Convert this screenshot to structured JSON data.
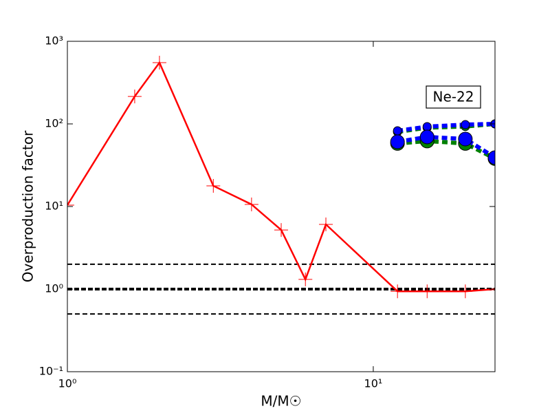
{
  "chart_data": {
    "type": "line",
    "xlabel": "M/M☉",
    "ylabel": "Overproduction factor",
    "annotation": "Ne-22",
    "xscale": "log",
    "yscale": "log",
    "xlim": [
      1,
      25
    ],
    "ylim": [
      0.1,
      1000
    ],
    "xticks": [
      {
        "value": 1,
        "label": "10⁰"
      },
      {
        "value": 10,
        "label": "10¹"
      }
    ],
    "yticks": [
      {
        "value": 0.1,
        "label": "10⁻¹"
      },
      {
        "value": 1,
        "label": "10⁰"
      },
      {
        "value": 10,
        "label": "10¹"
      },
      {
        "value": 100,
        "label": "10²"
      },
      {
        "value": 1000,
        "label": "10³"
      }
    ],
    "hlines": [
      {
        "value": 2,
        "color": "#000000",
        "style": "dashed"
      },
      {
        "value": 1,
        "color": "#000000",
        "style": "thick-dashed"
      },
      {
        "value": 0.5,
        "color": "#000000",
        "style": "dashed"
      }
    ],
    "series": [
      {
        "color": "#ff0000",
        "linestyle": "solid",
        "marker": "plus",
        "x": [
          1,
          1.66,
          2,
          3,
          4,
          5,
          6,
          7,
          12,
          15,
          20,
          25
        ],
        "values": [
          10.4,
          215,
          552,
          17.8,
          10.6,
          5.2,
          1.31,
          6.07,
          0.94,
          0.94,
          0.94,
          1.0
        ]
      },
      {
        "color": "#008000",
        "linestyle": "dashed",
        "marker": "small-circle",
        "x": [
          12,
          15,
          20,
          25
        ],
        "values": [
          80,
          90,
          93,
          100
        ]
      },
      {
        "color": "#008000",
        "linestyle": "dashed",
        "marker": "large-circle",
        "x": [
          12,
          15,
          20,
          25
        ],
        "values": [
          58,
          62,
          58,
          38
        ]
      },
      {
        "color": "#0000ff",
        "linestyle": "dashed",
        "marker": "small-circle",
        "x": [
          12,
          15,
          20,
          25
        ],
        "values": [
          82.5,
          92.6,
          98,
          100
        ]
      },
      {
        "color": "#0000ff",
        "linestyle": "dashed",
        "marker": "large-circle",
        "x": [
          12,
          15,
          20,
          25
        ],
        "values": [
          60.7,
          69.5,
          65.6,
          39.1
        ]
      }
    ]
  }
}
